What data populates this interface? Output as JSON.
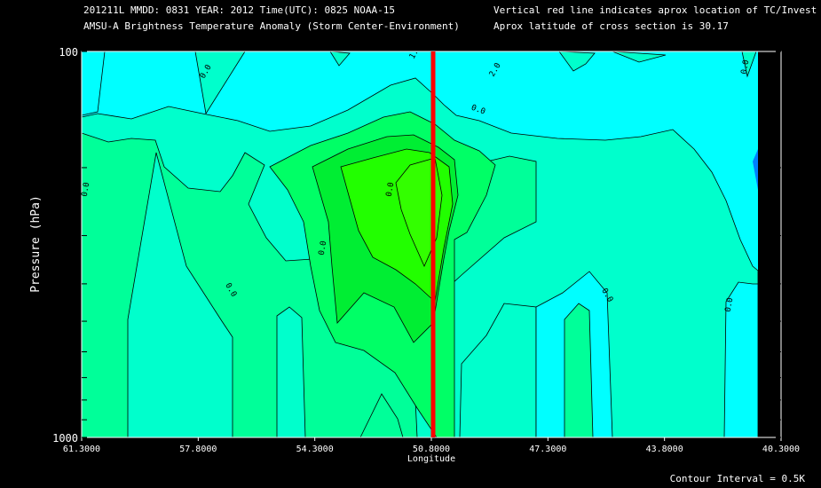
{
  "header": {
    "line1_left": "201211L  MMDD: 0831 YEAR: 2012 Time(UTC): 0825 NOAA-15",
    "line2_left": "AMSU-A Brightness Temperature Anomaly (Storm Center-Environment)",
    "line1_right": "Vertical red line indicates aprox location of TC/Invest",
    "line2_right": "Aprox latitude of cross section is 30.17"
  },
  "footer": {
    "contour_interval": "Contour Interval = 0.5K"
  },
  "colors": {
    "background": "#000000",
    "cyan": "#00ffff",
    "band_0": "#00ffcc",
    "band_0_5": "#00ff99",
    "band_1": "#00ff66",
    "band_1_5": "#00ee33",
    "band_2": "#22ff00",
    "storm_line": "#ff0000",
    "edge_blue": "#0080ff"
  },
  "chart_data": {
    "type": "heatmap",
    "xlabel": "Longitude",
    "ylabel": "Pressure (hPa)",
    "x_ticks": [
      "61.3000",
      "57.8000",
      "54.3000",
      "50.8000",
      "47.3000",
      "43.8000",
      "40.3000"
    ],
    "y_ticks": [
      "100",
      "1000"
    ],
    "y_scale": "log",
    "xlim": [
      61.3,
      40.3
    ],
    "ylim": [
      100,
      1000
    ],
    "storm_longitude": 50.8,
    "contour_labels": [
      "0.0",
      "0.0",
      "0.0",
      "0.0",
      "0.0",
      "0.0",
      "0.0",
      "0.0",
      "0.0",
      "1.0",
      "2.0"
    ],
    "peak_anomaly_K": 2.0,
    "peak_location": {
      "longitude": 51.4,
      "pressure_hPa": 250
    }
  }
}
